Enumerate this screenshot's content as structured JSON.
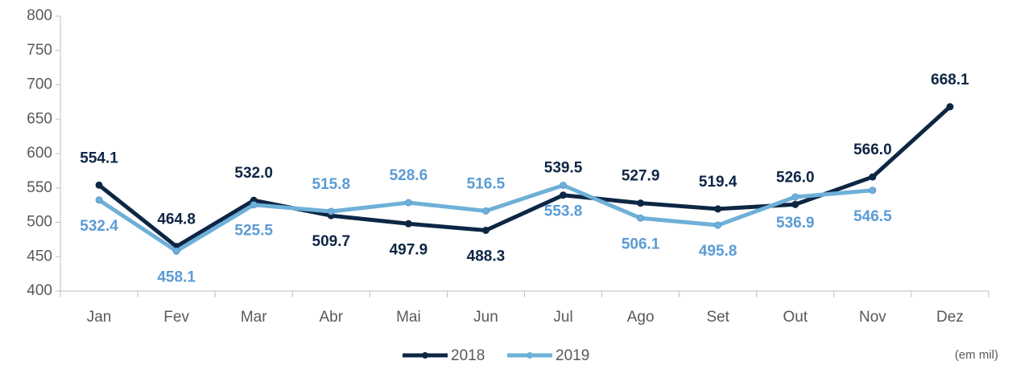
{
  "chart_data": {
    "type": "line",
    "categories": [
      "Jan",
      "Fev",
      "Mar",
      "Abr",
      "Mai",
      "Jun",
      "Jul",
      "Ago",
      "Set",
      "Out",
      "Nov",
      "Dez"
    ],
    "series": [
      {
        "name": "2018",
        "color": "#0d2644",
        "label_color": "#0d2644",
        "values": [
          554.1,
          464.8,
          532.0,
          509.7,
          497.9,
          488.3,
          539.5,
          527.9,
          519.4,
          526.0,
          566.0,
          668.1
        ],
        "value_labels": [
          "554.1",
          "464.8",
          "532.0",
          "509.7",
          "497.9",
          "488.3",
          "539.5",
          "527.9",
          "519.4",
          "526.0",
          "566.0",
          "668.1"
        ]
      },
      {
        "name": "2019",
        "color": "#6eb0d8",
        "label_color": "#5b9bd5",
        "values": [
          532.4,
          458.1,
          525.5,
          515.8,
          528.6,
          516.5,
          553.8,
          506.1,
          495.8,
          536.9,
          546.5,
          null
        ],
        "value_labels": [
          "532.4",
          "458.1",
          "525.5",
          "515.8",
          "528.6",
          "516.5",
          "553.8",
          "506.1",
          "495.8",
          "536.9",
          "546.5",
          null
        ]
      }
    ],
    "ylim": [
      400,
      800
    ],
    "yticks": [
      400,
      450,
      500,
      550,
      600,
      650,
      700,
      750,
      800
    ],
    "annotation": "(em mil)",
    "legend": "bottom"
  }
}
